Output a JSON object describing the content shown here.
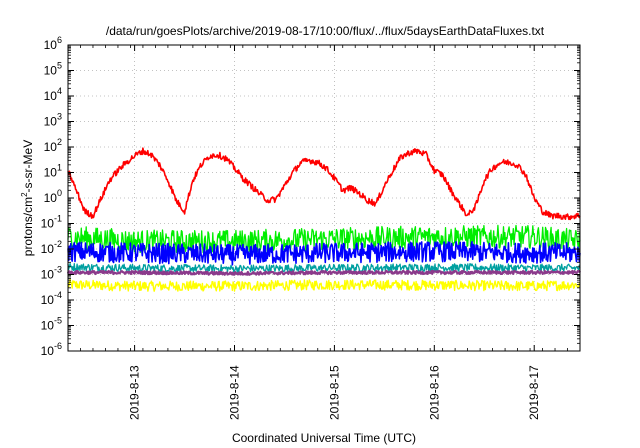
{
  "chart_data": {
    "type": "line",
    "title": "/data/run/goesPlots/archive/2019-08-17/10:00/flux/../flux/5daysEarthDataFluxes.txt",
    "xlabel": "Coordinated Universal Time (UTC)",
    "ylabel": {
      "base": "protons/cm",
      "sup": "2",
      "rest": "-s-sr-MeV"
    },
    "y_scale": "log",
    "ylim": [
      1e-06,
      1000000.0
    ],
    "y_ticks": [
      {
        "base": "10",
        "exp": "6",
        "value": 1000000.0
      },
      {
        "base": "10",
        "exp": "5",
        "value": 100000.0
      },
      {
        "base": "10",
        "exp": "4",
        "value": 10000.0
      },
      {
        "base": "10",
        "exp": "3",
        "value": 1000.0
      },
      {
        "base": "10",
        "exp": "2",
        "value": 100.0
      },
      {
        "base": "10",
        "exp": "1",
        "value": 10.0
      },
      {
        "base": "10",
        "exp": "0",
        "value": 1.0
      },
      {
        "base": "10",
        "exp": "-1",
        "value": 0.1
      },
      {
        "base": "10",
        "exp": "-2",
        "value": 0.01
      },
      {
        "base": "10",
        "exp": "-3",
        "value": 0.001
      },
      {
        "base": "10",
        "exp": "-4",
        "value": 0.0001
      },
      {
        "base": "10",
        "exp": "-5",
        "value": 1e-05
      },
      {
        "base": "10",
        "exp": "-6",
        "value": 1e-06
      }
    ],
    "xlim": [
      "2019-08-12 08:00",
      "2019-08-17 11:00"
    ],
    "x_ticks": [
      {
        "label": "2019-8-13",
        "value": "2019-08-13 00:00"
      },
      {
        "label": "2019-8-14",
        "value": "2019-08-14 00:00"
      },
      {
        "label": "2019-8-15",
        "value": "2019-08-15 00:00"
      },
      {
        "label": "2019-8-16",
        "value": "2019-08-16 00:00"
      },
      {
        "label": "2019-8-17",
        "value": "2019-08-17 00:00"
      }
    ],
    "grid": true,
    "series": [
      {
        "color": "#ff0000",
        "x": [
          "2019-08-12 08:00",
          "2019-08-12 10:00",
          "2019-08-12 12:00",
          "2019-08-12 14:00",
          "2019-08-12 16:00",
          "2019-08-12 18:00",
          "2019-08-12 20:00",
          "2019-08-12 22:00",
          "2019-08-13 00:00",
          "2019-08-13 02:00",
          "2019-08-13 04:00",
          "2019-08-13 06:00",
          "2019-08-13 08:00",
          "2019-08-13 10:00",
          "2019-08-13 12:00",
          "2019-08-13 14:00",
          "2019-08-13 16:00",
          "2019-08-13 18:00",
          "2019-08-13 20:00",
          "2019-08-13 22:00",
          "2019-08-14 00:00",
          "2019-08-14 02:00",
          "2019-08-14 04:00",
          "2019-08-14 06:00",
          "2019-08-14 08:00",
          "2019-08-14 10:00",
          "2019-08-14 12:00",
          "2019-08-14 14:00",
          "2019-08-14 16:00",
          "2019-08-14 18:00",
          "2019-08-14 20:00",
          "2019-08-14 22:00",
          "2019-08-15 00:00",
          "2019-08-15 02:00",
          "2019-08-15 04:00",
          "2019-08-15 06:00",
          "2019-08-15 08:00",
          "2019-08-15 10:00",
          "2019-08-15 12:00",
          "2019-08-15 14:00",
          "2019-08-15 16:00",
          "2019-08-15 18:00",
          "2019-08-15 20:00",
          "2019-08-15 22:00",
          "2019-08-16 00:00",
          "2019-08-16 02:00",
          "2019-08-16 04:00",
          "2019-08-16 06:00",
          "2019-08-16 08:00",
          "2019-08-16 10:00",
          "2019-08-16 12:00",
          "2019-08-16 14:00",
          "2019-08-16 16:00",
          "2019-08-16 18:00",
          "2019-08-16 20:00",
          "2019-08-16 22:00",
          "2019-08-17 00:00",
          "2019-08-17 02:00",
          "2019-08-17 04:00",
          "2019-08-17 06:00",
          "2019-08-17 08:00",
          "2019-08-17 10:00",
          "2019-08-17 11:00"
        ],
        "y": [
          12,
          2,
          0.3,
          0.2,
          1,
          5,
          12,
          25,
          45,
          70,
          50,
          20,
          5,
          0.8,
          0.3,
          5,
          20,
          45,
          50,
          35,
          15,
          6,
          3,
          1.5,
          0.8,
          0.9,
          3,
          10,
          25,
          30,
          25,
          15,
          6,
          2,
          2.5,
          1.5,
          0.8,
          0.6,
          3,
          12,
          40,
          60,
          70,
          50,
          12,
          8,
          2,
          0.6,
          0.2,
          0.5,
          5,
          15,
          25,
          25,
          20,
          8,
          1,
          0.3,
          0.2,
          0.2,
          0.18,
          0.2,
          0.2
        ]
      },
      {
        "color": "#00ee00",
        "x": [
          "2019-08-12 08:00",
          "2019-08-13 00:00",
          "2019-08-14 00:00",
          "2019-08-15 00:00",
          "2019-08-16 00:00",
          "2019-08-17 00:00",
          "2019-08-17 11:00"
        ],
        "y": [
          0.03,
          0.02,
          0.02,
          0.025,
          0.03,
          0.03,
          0.02
        ]
      },
      {
        "color": "#0000ff",
        "x": [
          "2019-08-12 08:00",
          "2019-08-13 00:00",
          "2019-08-14 00:00",
          "2019-08-15 00:00",
          "2019-08-16 00:00",
          "2019-08-17 00:00",
          "2019-08-17 11:00"
        ],
        "y": [
          0.008,
          0.007,
          0.006,
          0.007,
          0.008,
          0.007,
          0.007
        ]
      },
      {
        "color": "#00a0a0",
        "x": [
          "2019-08-12 08:00",
          "2019-08-13 00:00",
          "2019-08-14 00:00",
          "2019-08-15 00:00",
          "2019-08-16 00:00",
          "2019-08-17 00:00",
          "2019-08-17 11:00"
        ],
        "y": [
          0.002,
          0.0018,
          0.0017,
          0.0018,
          0.0019,
          0.0018,
          0.0018
        ]
      },
      {
        "color": "#8b3a8b",
        "x": [
          "2019-08-12 08:00",
          "2019-08-13 00:00",
          "2019-08-14 00:00",
          "2019-08-15 00:00",
          "2019-08-16 00:00",
          "2019-08-17 00:00",
          "2019-08-17 11:00"
        ],
        "y": [
          0.0012,
          0.0012,
          0.0011,
          0.0012,
          0.0012,
          0.0012,
          0.0012
        ]
      },
      {
        "color": "#ffff00",
        "x": [
          "2019-08-12 08:00",
          "2019-08-13 00:00",
          "2019-08-14 00:00",
          "2019-08-15 00:00",
          "2019-08-16 00:00",
          "2019-08-17 00:00",
          "2019-08-17 11:00"
        ],
        "y": [
          0.0004,
          0.00035,
          0.00035,
          0.0004,
          0.00038,
          0.00035,
          0.0004
        ]
      }
    ]
  }
}
